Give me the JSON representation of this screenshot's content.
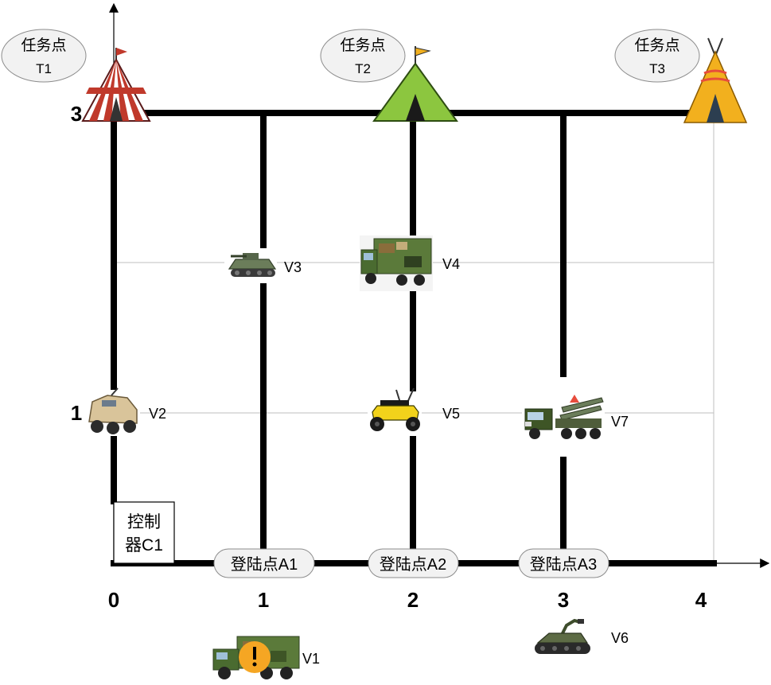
{
  "axis": {
    "x_ticks": [
      "0",
      "1",
      "2",
      "3",
      "4"
    ],
    "y_ticks": [
      "1",
      "3"
    ]
  },
  "task_points": [
    {
      "id": "t1",
      "line1": "任务点",
      "line2": "T1"
    },
    {
      "id": "t2",
      "line1": "任务点",
      "line2": "T2"
    },
    {
      "id": "t3",
      "line1": "任务点",
      "line2": "T3"
    }
  ],
  "controller": {
    "line1": "控制",
    "line2": "器C1"
  },
  "landing_points": [
    {
      "id": "a1",
      "label": "登陆点A1"
    },
    {
      "id": "a2",
      "label": "登陆点A2"
    },
    {
      "id": "a3",
      "label": "登陆点A3"
    }
  ],
  "vehicles": [
    {
      "id": "v1",
      "label": "V1",
      "kind": "camo-truck-warning"
    },
    {
      "id": "v2",
      "label": "V2",
      "kind": "armored-car"
    },
    {
      "id": "v3",
      "label": "V3",
      "kind": "tank"
    },
    {
      "id": "v4",
      "label": "V4",
      "kind": "camo-truck"
    },
    {
      "id": "v5",
      "label": "V5",
      "kind": "robot-rover"
    },
    {
      "id": "v6",
      "label": "V6",
      "kind": "tracked-robot"
    },
    {
      "id": "v7",
      "label": "V7",
      "kind": "missile-truck"
    }
  ],
  "colors": {
    "road": "#000000",
    "grid": "#bfbfbf",
    "tent_t1": "#c0392b",
    "tent_t2": "#8cc63f",
    "tent_t3": "#f2b01e",
    "warning": "#f5a623",
    "camo": "#5b7a3a"
  }
}
